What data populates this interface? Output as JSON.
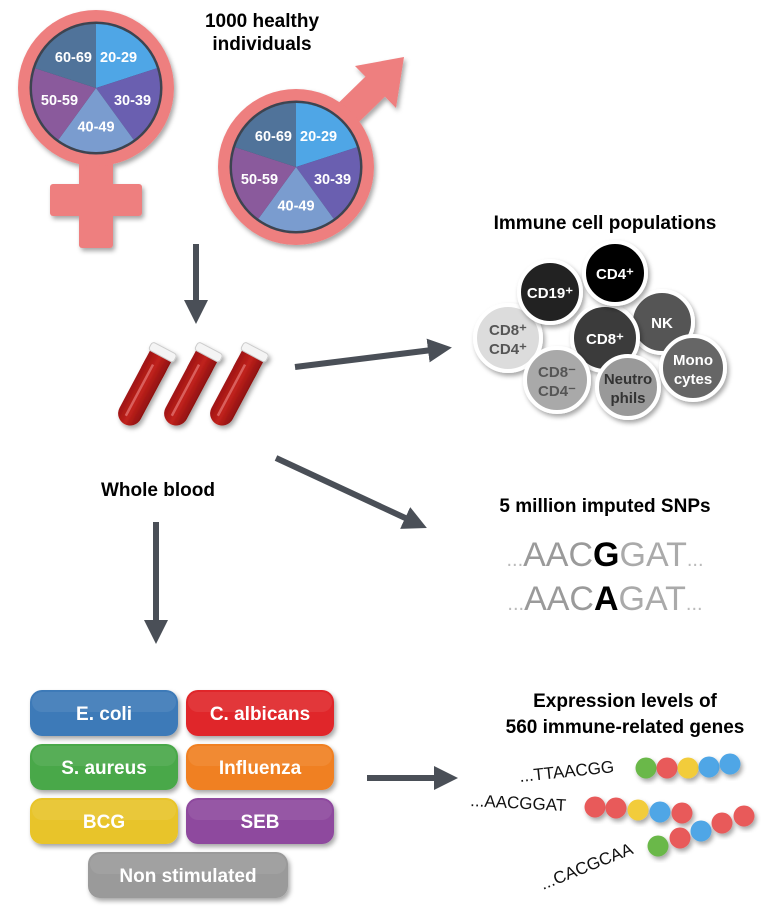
{
  "cohort": {
    "title_line1": "1000 healthy",
    "title_line2": "individuals",
    "age_groups": [
      "20-29",
      "30-39",
      "40-49",
      "50-59",
      "60-69"
    ],
    "age_colors": [
      "#4fa6e6",
      "#6a5fb0",
      "#7a9ccf",
      "#8a5a9c",
      "#50739a"
    ],
    "symbol_color": "#ee7f7f"
  },
  "blood": {
    "label": "Whole blood"
  },
  "immune": {
    "title": "Immune cell populations",
    "cells": [
      {
        "line1": "CD8⁺",
        "line2": "CD4⁺",
        "fill": "#dcdcdc",
        "text": "#555555"
      },
      {
        "line1": "CD19⁺",
        "line2": "",
        "fill": "#222222",
        "text": "#ffffff"
      },
      {
        "line1": "NK",
        "line2": "",
        "fill": "#555555",
        "text": "#ffffff"
      },
      {
        "line1": "CD8⁺",
        "line2": "",
        "fill": "#3a3a3a",
        "text": "#ffffff"
      },
      {
        "line1": "CD4⁺",
        "line2": "",
        "fill": "#000000",
        "text": "#ffffff"
      },
      {
        "line1": "CD8⁻",
        "line2": "CD4⁻",
        "fill": "#a9a9a9",
        "text": "#555555"
      },
      {
        "line1": "Neutro",
        "line2": "phils",
        "fill": "#999999",
        "text": "#333333"
      },
      {
        "line1": "Mono",
        "line2": "cytes",
        "fill": "#666666",
        "text": "#ffffff"
      }
    ]
  },
  "snps": {
    "title": "5 million imputed SNPs",
    "seq1": {
      "prefix": "...",
      "before": "AAC",
      "variant": "G",
      "after": "GAT",
      "suffix": "..."
    },
    "seq2": {
      "prefix": "...",
      "before": "AAC",
      "variant": "A",
      "after": "GAT",
      "suffix": "..."
    }
  },
  "stimuli": [
    {
      "label": "E. coli",
      "color": "#3d7ab8"
    },
    {
      "label": "C. albicans",
      "color": "#e0272c"
    },
    {
      "label": "S. aureus",
      "color": "#4aa84a"
    },
    {
      "label": "Influenza",
      "color": "#f08020"
    },
    {
      "label": "BCG",
      "color": "#e8c42a"
    },
    {
      "label": "SEB",
      "color": "#8e4a9e"
    },
    {
      "label": "Non stimulated",
      "color": "#9a9a9a"
    }
  ],
  "expression": {
    "title_line1": "Expression levels of",
    "title_line2": "560 immune-related genes",
    "rows": [
      {
        "seq": "...TTAACGG",
        "beads": [
          "#6bb84a",
          "#e85a5a",
          "#f2cc3a",
          "#4fa6e6",
          "#4fa6e6"
        ]
      },
      {
        "seq": "...AACGGAT",
        "beads": [
          "#e85a5a",
          "#e85a5a",
          "#f2cc3a",
          "#4fa6e6",
          "#e85a5a"
        ]
      },
      {
        "seq": "...CACGCAA",
        "beads": [
          "#6bb84a",
          "#e85a5a",
          "#4fa6e6",
          "#e85a5a",
          "#e85a5a"
        ]
      }
    ]
  },
  "arrow_color": "#4a4f57"
}
